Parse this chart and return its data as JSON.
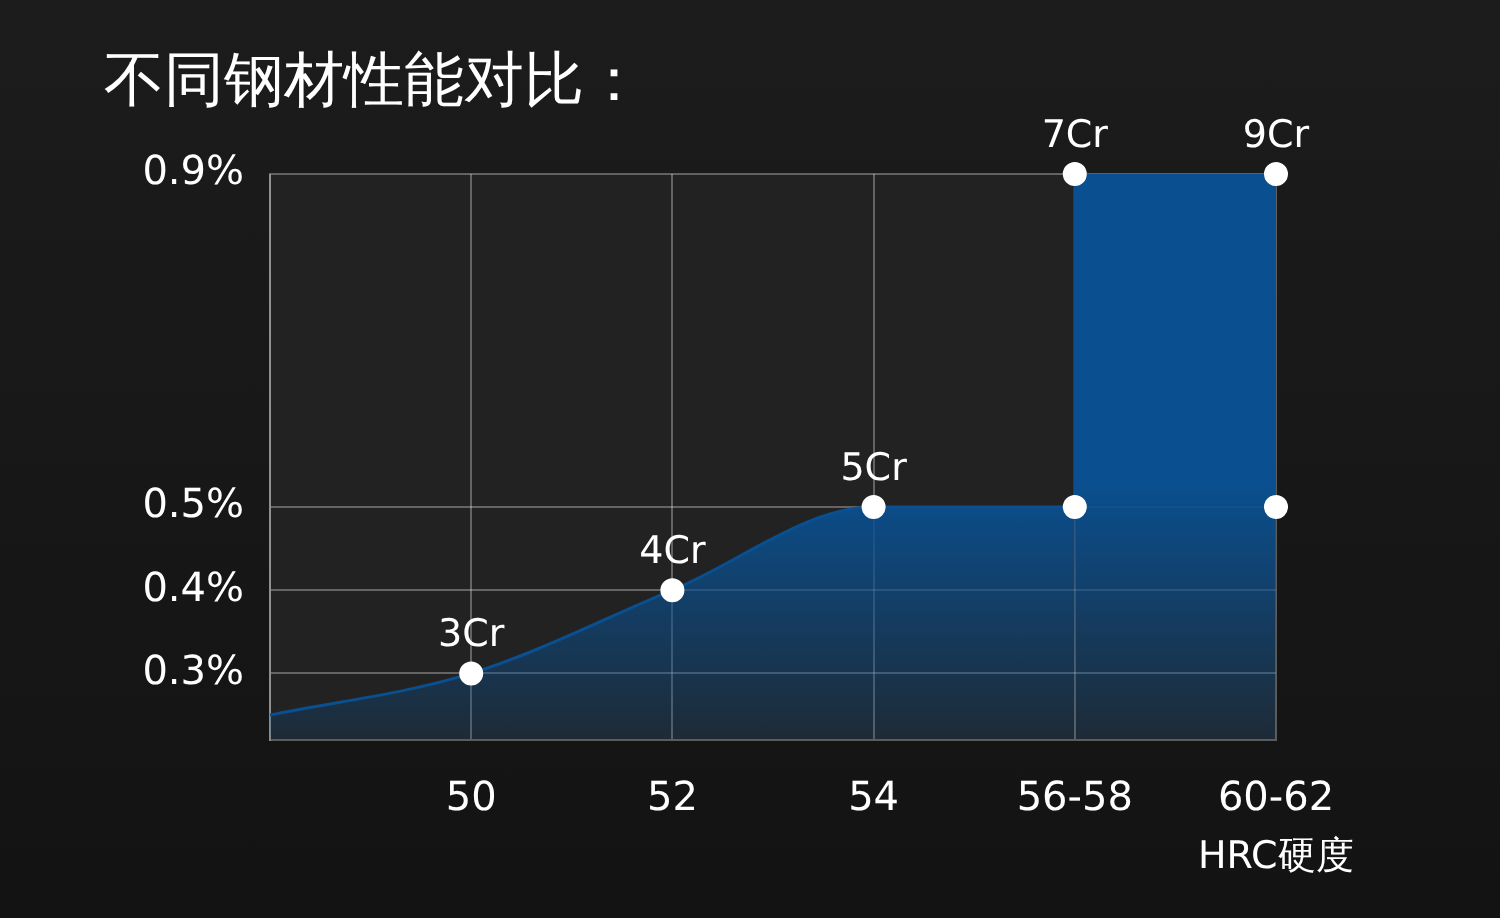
{
  "chart_data": {
    "type": "area",
    "title": "不同钢材性能对比：",
    "xlabel": "HRC硬度",
    "categories": [
      null,
      "50",
      "52",
      "54",
      "56-58",
      "60-62"
    ],
    "ylim": [
      0.22,
      0.9
    ],
    "yticks": [
      {
        "value": 0.3,
        "label": "0.3%"
      },
      {
        "value": 0.4,
        "label": "0.4%"
      },
      {
        "value": 0.5,
        "label": "0.5%"
      },
      {
        "value": 0.9,
        "label": "0.9%"
      }
    ],
    "grid": true,
    "series": [
      {
        "color": "#0a4f8f",
        "values": [
          0.25,
          0.3,
          0.4,
          0.5,
          0.5,
          null
        ]
      },
      {
        "color": "#0a4f8f",
        "x": [
          "56-58",
          "56-58",
          "60-62"
        ],
        "values": [
          0.5,
          0.9,
          0.9
        ]
      },
      {
        "type": "scatter",
        "marker": "circle",
        "color": "#ffffff",
        "x": [
          "50",
          "52",
          "54",
          "56-58",
          "56-58",
          "60-62",
          "60-62"
        ],
        "values": [
          0.3,
          0.4,
          0.5,
          0.5,
          0.9,
          0.9,
          0.5
        ]
      }
    ],
    "annotations": [
      {
        "text": "3Cr",
        "x": "50",
        "y": 0.3
      },
      {
        "text": "4Cr",
        "x": "52",
        "y": 0.4
      },
      {
        "text": "5Cr",
        "x": "54",
        "y": 0.5
      },
      {
        "text": "7Cr",
        "x": "56-58",
        "y": 0.9
      },
      {
        "text": "9Cr",
        "x": "60-62",
        "y": 0.9
      }
    ]
  }
}
